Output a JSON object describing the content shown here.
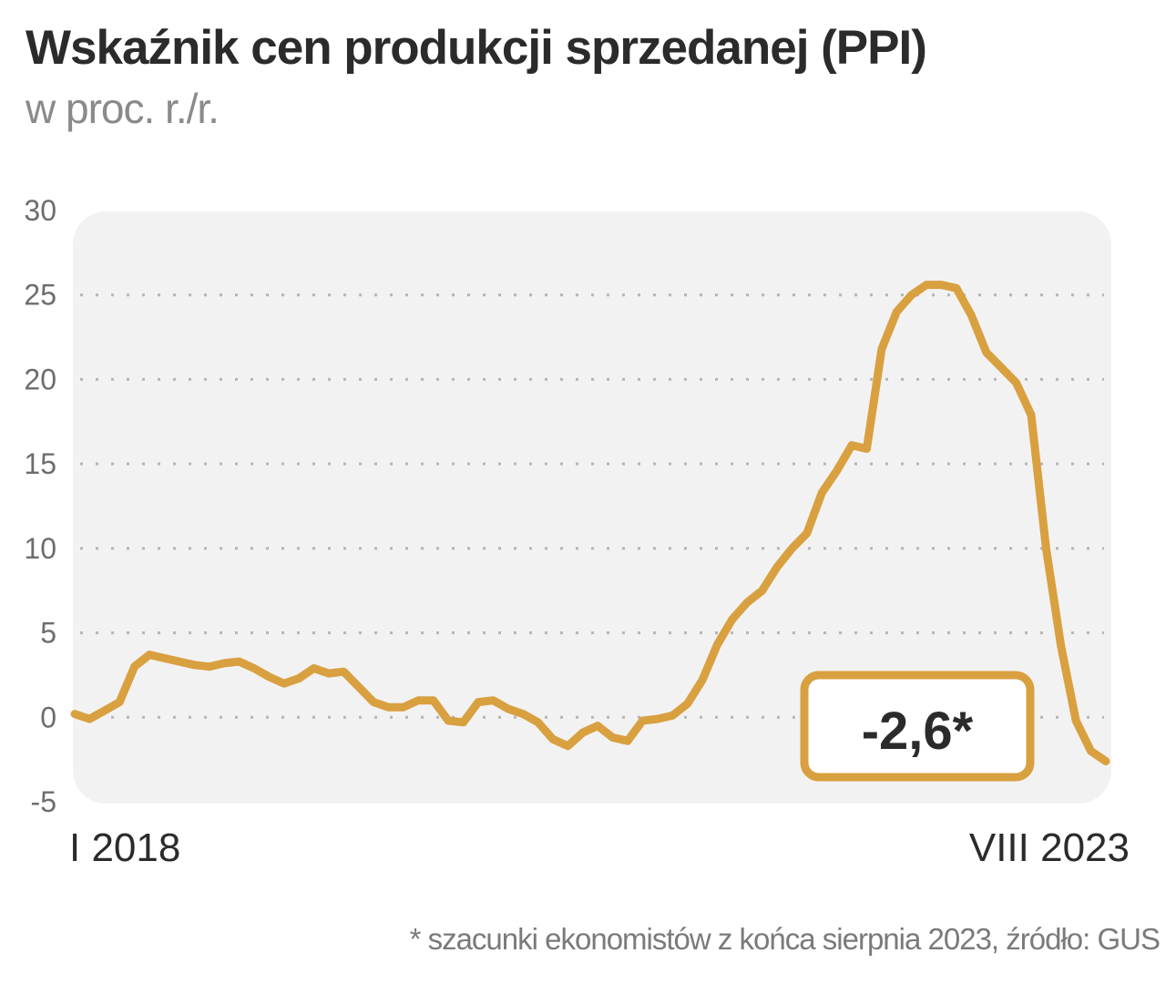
{
  "chart_data": {
    "type": "line",
    "title": "Wskaźnik cen produkcji sprzedanej (PPI)",
    "subtitle": "w proc. r./r.",
    "ylim": [
      -5,
      30
    ],
    "yticks": [
      "-5",
      "0",
      "5",
      "10",
      "15",
      "20",
      "25",
      "30"
    ],
    "ytick_values": [
      -5,
      0,
      5,
      10,
      15,
      20,
      25,
      30
    ],
    "grid": true,
    "x_start_label": "I 2018",
    "x_end_label": "VIII 2023",
    "callout": "-2,6*",
    "footnote": "* szacunki ekonomistów z końca sierpnia 2023, źródło: GUS",
    "colors": {
      "line": "#d9a040",
      "grid": "#b5b5b5",
      "plot_bg": "#f2f2f2"
    },
    "series": [
      {
        "values": [
          0.2,
          -0.1,
          0.4,
          0.9,
          3.0,
          3.7,
          3.5,
          3.3,
          3.1,
          3.0,
          3.2,
          3.3,
          2.9,
          2.4,
          2.0,
          2.3,
          2.9,
          2.6,
          2.7,
          1.8,
          0.9,
          0.6,
          0.6,
          1.0,
          1.0,
          -0.2,
          -0.3,
          0.9,
          1.0,
          0.5,
          0.2,
          -0.3,
          -1.3,
          -1.7,
          -0.9,
          -0.5,
          -1.2,
          -1.4,
          -0.2,
          -0.1,
          0.1,
          0.8,
          2.2,
          4.3,
          5.8,
          6.8,
          7.5,
          8.9,
          10.0,
          10.9,
          13.3,
          14.6,
          16.1,
          15.9,
          21.8,
          24.0,
          25.0,
          25.6,
          25.6,
          25.4,
          23.8,
          21.6,
          20.7,
          19.8,
          17.9,
          10.0,
          4.2,
          -0.2,
          -2.0,
          -2.6
        ],
        "label_point": -2.6
      }
    ]
  }
}
